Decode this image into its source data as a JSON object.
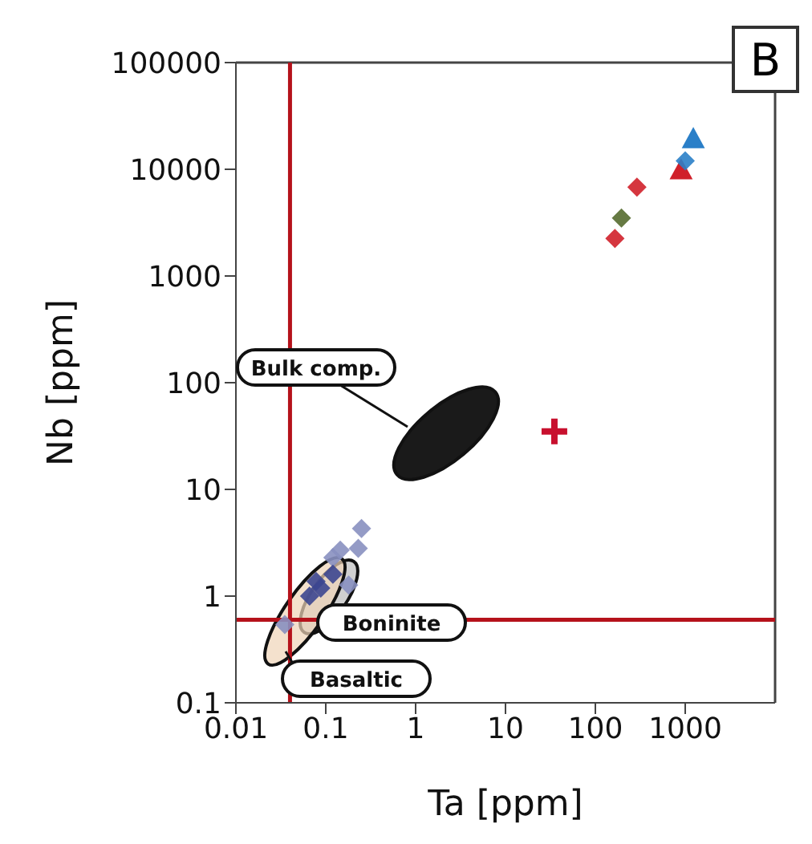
{
  "chart_data": {
    "type": "scatter",
    "xlabel": "Ta [ppm]",
    "ylabel": "Nb [ppm]",
    "log": "xy",
    "grid": false,
    "legend": false,
    "xlim": [
      0.01,
      10000
    ],
    "xticks": [
      0.01,
      0.1,
      1,
      10,
      100,
      1000
    ],
    "ylim": [
      0.1,
      100000
    ],
    "yticks": [
      0.1,
      1,
      10,
      100,
      1000,
      10000,
      100000
    ],
    "ref_lines": [
      {
        "axis": "x",
        "value": 0.04,
        "color": "#b5121b"
      },
      {
        "axis": "y",
        "value": 0.6,
        "color": "#b5121b"
      }
    ],
    "annotations": [
      "B",
      "Bulk comp.",
      "Boninite",
      "Basaltic"
    ],
    "series": [
      {
        "color": "#8890c0",
        "marker": "diamond",
        "x": [
          0.25,
          0.23,
          0.145,
          0.12,
          0.035,
          0.18
        ],
        "values": [
          4.3,
          2.8,
          2.7,
          2.3,
          0.54,
          1.27
        ]
      },
      {
        "color": "#3c4690",
        "marker": "diamond",
        "x": [
          0.066,
          0.088,
          0.078,
          0.12
        ],
        "values": [
          1,
          1.19,
          1.37,
          1.6
        ]
      },
      {
        "color": "#d0202a",
        "marker": "diamond",
        "x": [
          290,
          165
        ],
        "values": [
          6800,
          2250
        ]
      },
      {
        "color": "#556b2f",
        "marker": "diamond",
        "x": [
          195
        ],
        "values": [
          3500
        ]
      },
      {
        "color": "#d0202a",
        "marker": "triangle",
        "x": [
          900
        ],
        "values": [
          9500
        ]
      },
      {
        "color": "#2a7fc8",
        "marker": "triangle",
        "x": [
          1230
        ],
        "values": [
          18600
        ]
      },
      {
        "color": "#2a7fc8",
        "marker": "diamond",
        "x": [
          1000
        ],
        "values": [
          12000
        ]
      },
      {
        "color": "#c8102e",
        "marker": "cross",
        "x": [
          35
        ],
        "values": [
          35
        ]
      }
    ]
  }
}
